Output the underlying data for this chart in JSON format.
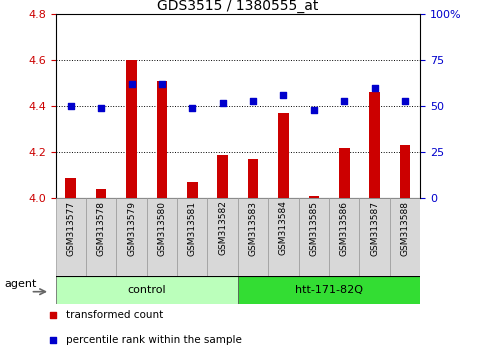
{
  "title": "GDS3515 / 1380555_at",
  "categories": [
    "GSM313577",
    "GSM313578",
    "GSM313579",
    "GSM313580",
    "GSM313581",
    "GSM313582",
    "GSM313583",
    "GSM313584",
    "GSM313585",
    "GSM313586",
    "GSM313587",
    "GSM313588"
  ],
  "bar_values": [
    4.09,
    4.04,
    4.6,
    4.51,
    4.07,
    4.19,
    4.17,
    4.37,
    4.01,
    4.22,
    4.46,
    4.23
  ],
  "dot_values_pct": [
    50,
    49,
    62,
    62,
    49,
    52,
    53,
    56,
    48,
    53,
    60,
    53
  ],
  "ymin": 4.0,
  "ymax": 4.8,
  "y2min": 0,
  "y2max": 100,
  "yticks": [
    4.0,
    4.2,
    4.4,
    4.6,
    4.8
  ],
  "y2ticks": [
    0,
    25,
    50,
    75,
    100
  ],
  "y2ticklabels": [
    "0",
    "25",
    "50",
    "75",
    "100%"
  ],
  "bar_color": "#cc0000",
  "dot_color": "#0000cc",
  "groups": [
    {
      "label": "control",
      "start": 0,
      "end": 5,
      "color": "#bbffbb"
    },
    {
      "label": "htt-171-82Q",
      "start": 6,
      "end": 11,
      "color": "#33dd33"
    }
  ],
  "agent_label": "agent",
  "legend_items": [
    {
      "label": "transformed count",
      "color": "#cc0000"
    },
    {
      "label": "percentile rank within the sample",
      "color": "#0000cc"
    }
  ],
  "grid_lines": [
    4.2,
    4.4,
    4.6
  ],
  "ylabel_color": "#cc0000",
  "y2label_color": "#0000cc",
  "col_bg": "#d8d8d8",
  "col_border": "#999999"
}
